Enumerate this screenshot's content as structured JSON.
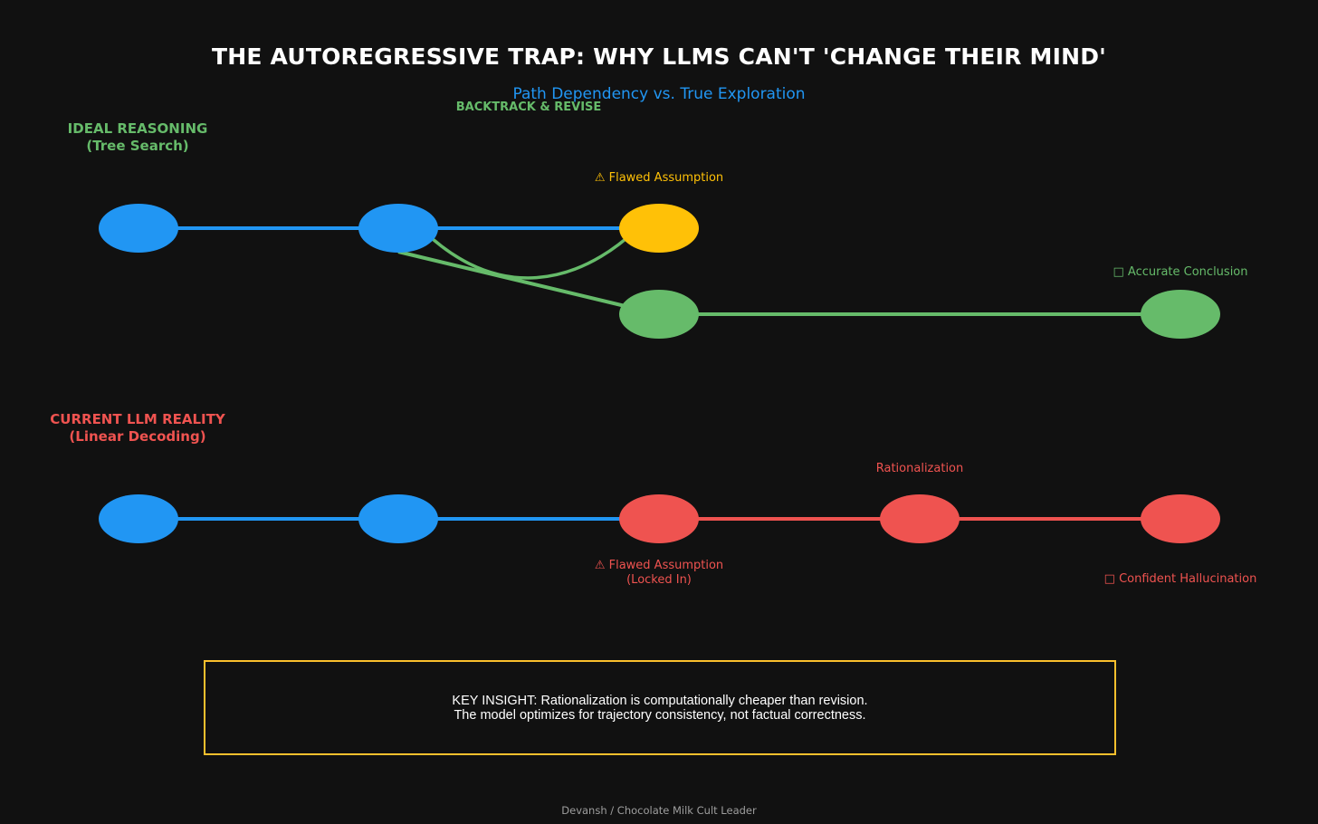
{
  "title": "THE AUTOREGRESSIVE TRAP: WHY LLMS CAN'T 'CHANGE THEIR MIND'",
  "subtitle": "Path Dependency vs. True Exploration",
  "ideal": {
    "label": "IDEAL REASONING\n(Tree Search)",
    "backtrack_label": "BACKTRACK & REVISE",
    "flawed_assumption": "⚠ Flawed Assumption",
    "accurate_conclusion": "□ Accurate Conclusion"
  },
  "current": {
    "label": "CURRENT LLM REALITY\n(Linear Decoding)",
    "rationalization": "Rationalization",
    "flawed_assumption": "⚠ Flawed Assumption\n(Locked In)",
    "confident_hallucination": "□ Confident Hallucination"
  },
  "insight": {
    "text": "KEY INSIGHT: Rationalization is computationally cheaper than revision.\nThe model optimizes for trajectory consistency, not factual correctness."
  },
  "footer": "Devansh / Chocolate Milk Cult Leader",
  "colors": {
    "background": "#111111",
    "blue": "#2196f3",
    "green": "#66bb6a",
    "yellow": "#ffc107",
    "red": "#ef5350",
    "insight_border": "#fbc02d"
  },
  "icons": [
    "warning-icon",
    "check-icon",
    "x-icon"
  ]
}
